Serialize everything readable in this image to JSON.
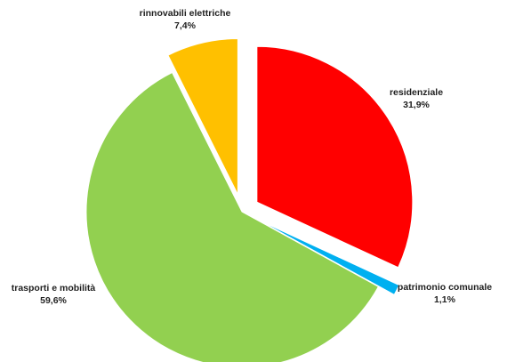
{
  "chart_data": {
    "type": "pie",
    "title": "",
    "slices": [
      {
        "label": "residenziale",
        "value": 31.9,
        "value_text": "31,9%",
        "color": "#ff0000",
        "exploded": true
      },
      {
        "label": "patrimonio comunale",
        "value": 1.1,
        "value_text": "1,1%",
        "color": "#00b0f0",
        "exploded": true
      },
      {
        "label": "trasporti e mobilità",
        "value": 59.6,
        "value_text": "59,6%",
        "color": "#92d050",
        "exploded": false
      },
      {
        "label": "rinnovabili elettriche",
        "value": 7.4,
        "value_text": "7,4%",
        "color": "#ffc000",
        "exploded": true
      }
    ],
    "start_angle": "12 o'clock",
    "direction": "clockwise",
    "legend": "none",
    "data_labels": "outside, category name and percentage"
  }
}
